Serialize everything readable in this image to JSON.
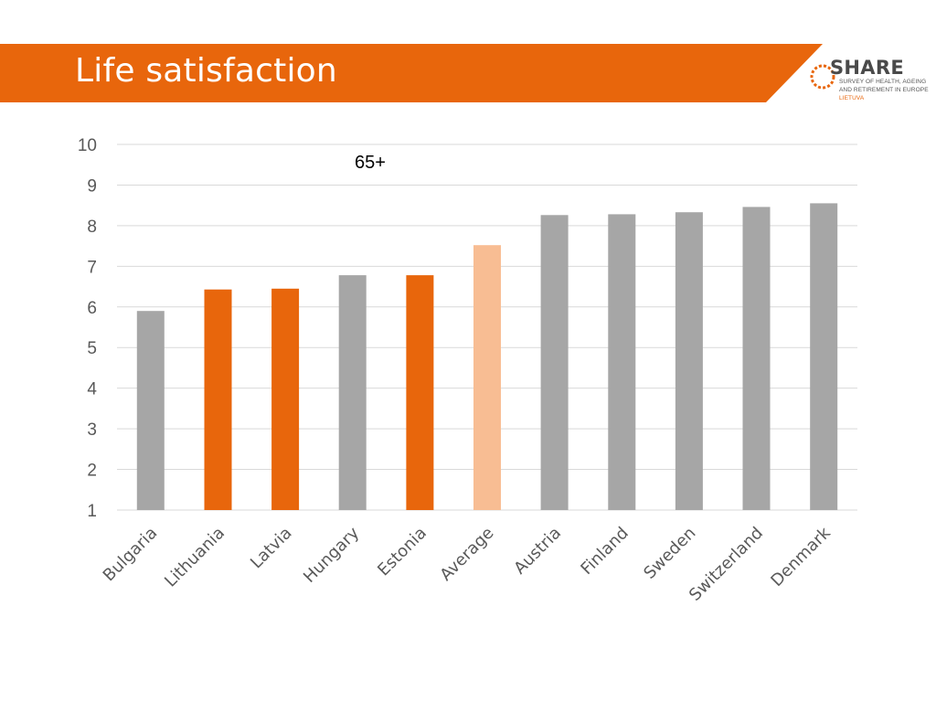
{
  "slide": {
    "title": "Life satisfaction"
  },
  "logo": {
    "name": "SHARE",
    "line1": "SURVEY OF HEALTH, AGEING",
    "line2": "AND RETIREMENT IN EUROPE",
    "country": "LIETUVA"
  },
  "colors": {
    "banner": "#e8660c",
    "highlight": "#e8660c",
    "average": "#f8bd93",
    "other": "#a6a6a6",
    "grid": "#d9d9d9"
  },
  "chart_data": {
    "type": "bar",
    "title": "",
    "annotation": "65+",
    "xlabel": "",
    "ylabel": "",
    "ylim": [
      1,
      10
    ],
    "yticks": [
      1,
      2,
      3,
      4,
      5,
      6,
      7,
      8,
      9,
      10
    ],
    "grid": true,
    "categories": [
      "Bulgaria",
      "Lithuania",
      "Latvia",
      "Hungary",
      "Estonia",
      "Average",
      "Austria",
      "Finland",
      "Sweden",
      "Switzerland",
      "Denmark"
    ],
    "values": [
      5.9,
      6.43,
      6.45,
      6.78,
      6.78,
      7.52,
      8.26,
      8.28,
      8.33,
      8.46,
      8.55
    ],
    "bar_groups": [
      "other",
      "highlight",
      "highlight",
      "other",
      "highlight",
      "average",
      "other",
      "other",
      "other",
      "other",
      "other"
    ]
  }
}
